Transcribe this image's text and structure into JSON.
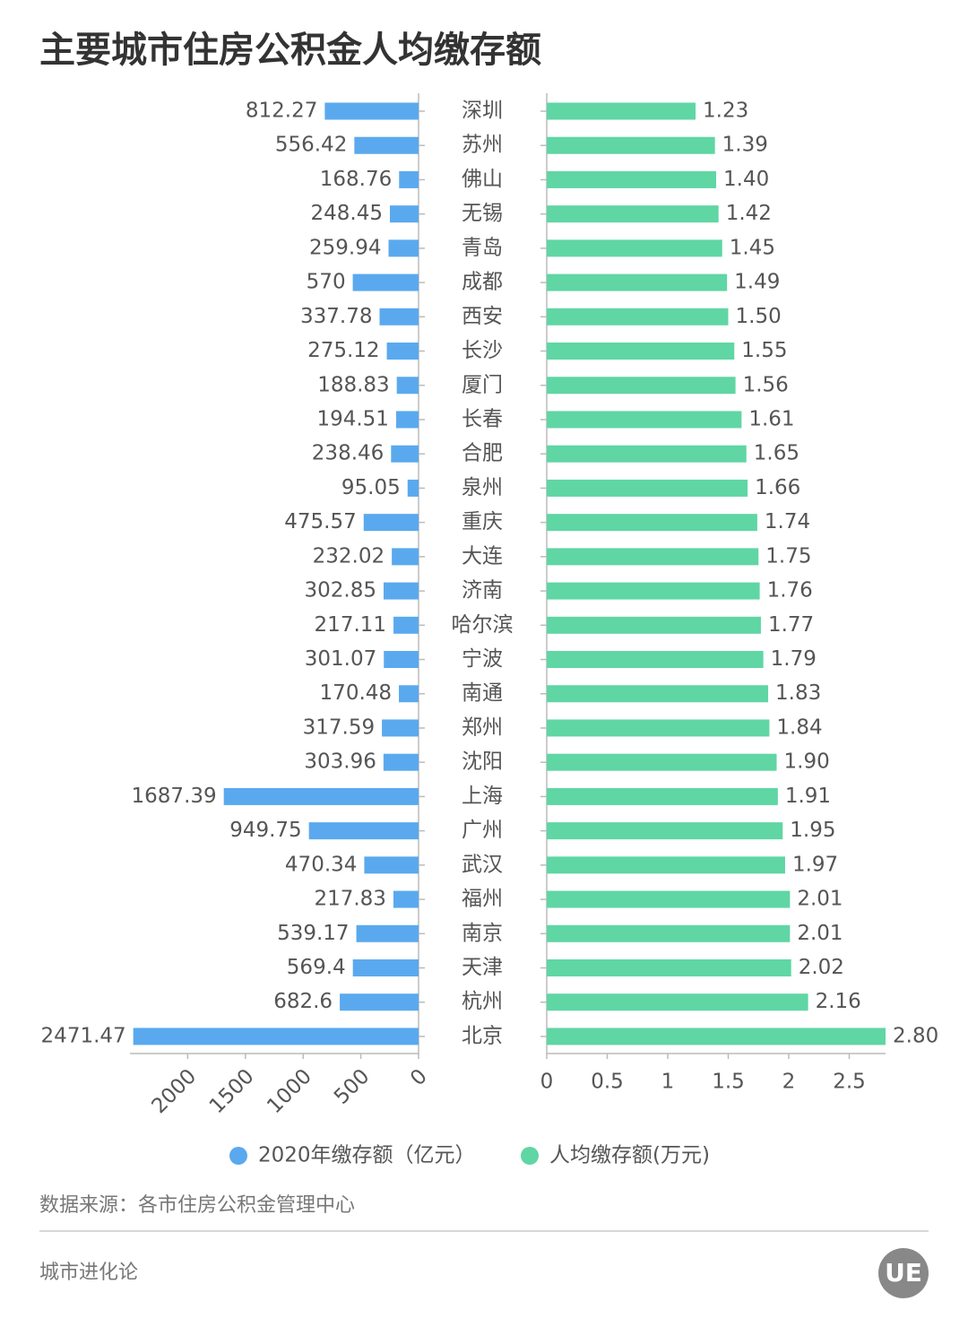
{
  "chart_data": {
    "type": "bar",
    "orientation": "horizontal",
    "title": "主要城市住房公积金人均缴存额",
    "categories": [
      "深圳",
      "苏州",
      "佛山",
      "无锡",
      "青岛",
      "成都",
      "西安",
      "长沙",
      "厦门",
      "长春",
      "合肥",
      "泉州",
      "重庆",
      "大连",
      "济南",
      "哈尔滨",
      "宁波",
      "南通",
      "郑州",
      "沈阳",
      "上海",
      "广州",
      "武汉",
      "福州",
      "南京",
      "天津",
      "杭州",
      "北京"
    ],
    "series": [
      {
        "name": "2020年缴存额（亿元）",
        "color": "#5aa9ee",
        "axis": "x",
        "values": [
          812.27,
          556.42,
          168.76,
          248.45,
          259.94,
          570,
          337.78,
          275.12,
          188.83,
          194.51,
          238.46,
          95.05,
          475.57,
          232.02,
          302.85,
          217.11,
          301.07,
          170.48,
          317.59,
          303.96,
          1687.39,
          949.75,
          470.34,
          217.83,
          539.17,
          569.4,
          682.6,
          2471.47
        ]
      },
      {
        "name": "人均缴存额(万元)",
        "color": "#5fd6a4",
        "axis": "x2",
        "values": [
          1.23,
          1.39,
          1.4,
          1.42,
          1.45,
          1.49,
          1.5,
          1.55,
          1.56,
          1.61,
          1.65,
          1.66,
          1.74,
          1.75,
          1.76,
          1.77,
          1.79,
          1.83,
          1.84,
          1.9,
          1.91,
          1.95,
          1.97,
          2.01,
          2.01,
          2.02,
          2.16,
          2.8
        ],
        "value_labels": [
          "1.23",
          "1.39",
          "1.40",
          "1.42",
          "1.45",
          "1.49",
          "1.50",
          "1.55",
          "1.56",
          "1.61",
          "1.65",
          "1.66",
          "1.74",
          "1.75",
          "1.76",
          "1.77",
          "1.79",
          "1.83",
          "1.84",
          "1.90",
          "1.91",
          "1.95",
          "1.97",
          "2.01",
          "2.01",
          "2.02",
          "2.16",
          "2.80"
        ]
      }
    ],
    "xlim": [
      2500,
      0
    ],
    "xticks": [
      2000,
      1500,
      1000,
      500,
      0
    ],
    "x2lim": [
      0,
      2.8
    ],
    "x2ticks": [
      0,
      0.5,
      1,
      1.5,
      2,
      2.5
    ],
    "grid": false,
    "source": "数据来源：各市住房公积金管理中心",
    "footer": "城市进化论",
    "logo": "UE"
  }
}
